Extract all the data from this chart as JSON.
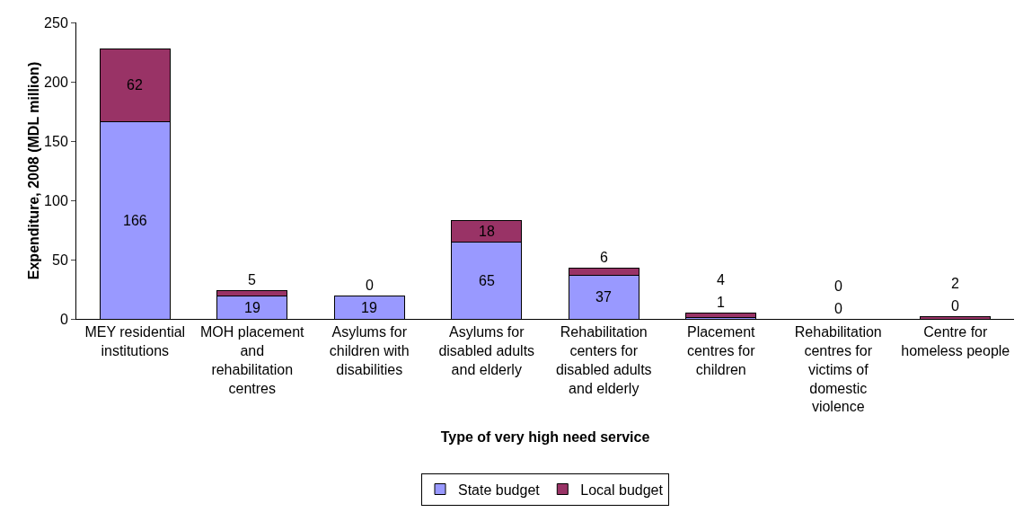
{
  "chart_data": {
    "type": "bar",
    "stacked": true,
    "xlabel": "Type of very high need service",
    "ylabel": "Expenditure, 2008 (MDL million)",
    "categories": [
      "MEY residential institutions",
      "MOH placement and rehabilitation centres",
      "Asylums for children with disabilities",
      "Asylums for disabled adults and elderly",
      "Rehabilitation centers for disabled adults and elderly",
      "Placement centres for children",
      "Rehabilitation centres for victims of domestic violence",
      "Centre for homeless people"
    ],
    "series": [
      {
        "name": "State budget",
        "color": "#9999ff",
        "values": [
          166,
          19,
          19,
          65,
          37,
          1,
          0,
          0
        ]
      },
      {
        "name": "Local budget",
        "color": "#993366",
        "values": [
          62,
          5,
          0,
          18,
          6,
          4,
          0,
          2
        ]
      }
    ],
    "ylim": [
      0,
      250
    ],
    "yticks": [
      0,
      50,
      100,
      150,
      200,
      250
    ],
    "grid": false,
    "legend": "bottom",
    "data_labels": true
  }
}
